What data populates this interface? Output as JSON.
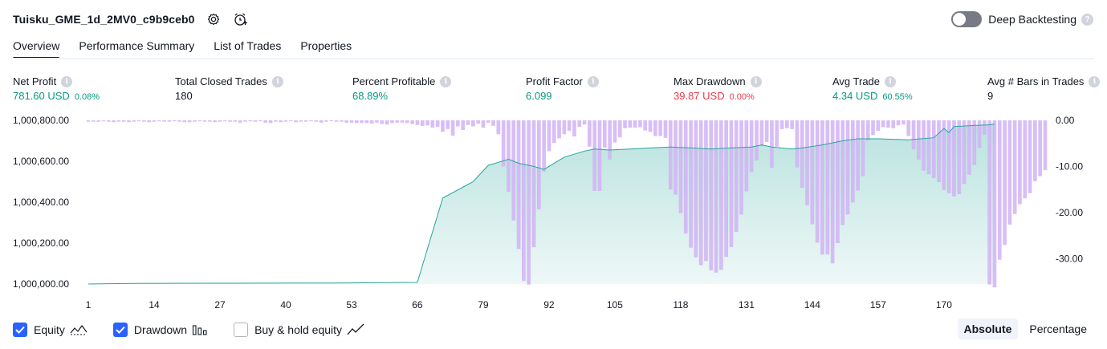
{
  "header": {
    "title": "Tuisku_GME_1d_2MV0_c9b9ceb0"
  },
  "deep_backtesting": {
    "label": "Deep Backtesting",
    "enabled": false,
    "help": "?"
  },
  "tabs": [
    {
      "label": "Overview",
      "active": true
    },
    {
      "label": "Performance Summary",
      "active": false
    },
    {
      "label": "List of Trades",
      "active": false
    },
    {
      "label": "Properties",
      "active": false
    }
  ],
  "metrics": {
    "info_glyph": "i",
    "net_profit": {
      "label": "Net Profit",
      "value": "781.60 USD",
      "pct": "0.08%"
    },
    "total_closed_trades": {
      "label": "Total Closed Trades",
      "value": "180"
    },
    "percent_profitable": {
      "label": "Percent Profitable",
      "value": "68.89%"
    },
    "profit_factor": {
      "label": "Profit Factor",
      "value": "6.099"
    },
    "max_drawdown": {
      "label": "Max Drawdown",
      "value": "39.87 USD",
      "pct": "0.00%"
    },
    "avg_trade": {
      "label": "Avg Trade",
      "value": "4.34 USD",
      "pct": "60.55%"
    },
    "avg_bars": {
      "label": "Avg # Bars in Trades",
      "value": "9"
    }
  },
  "colors": {
    "green": "#089981",
    "red": "#f23645",
    "equity_line": "#26a69a",
    "drawdown_bar": "#d1b3f4",
    "checkbox": "#2962ff"
  },
  "chart_data": {
    "type": "area",
    "x_label": "trade #",
    "x_ticks": [
      1,
      14,
      27,
      40,
      53,
      66,
      79,
      92,
      105,
      118,
      131,
      144,
      157,
      170
    ],
    "left_axis": {
      "ticks": [
        "1,000,000.00",
        "1,000,200.00",
        "1,000,400.00",
        "1,000,600.00",
        "1,000,800.00"
      ],
      "range": [
        1000000,
        1000800
      ]
    },
    "right_axis": {
      "ticks": [
        "0.00",
        "-10.00",
        "-20.00",
        "-30.00"
      ],
      "range": [
        -36,
        0
      ]
    },
    "series": [
      {
        "name": "Equity",
        "axis": "left",
        "points": [
          [
            1,
            1000000
          ],
          [
            10,
            1000003
          ],
          [
            30,
            1000004
          ],
          [
            50,
            1000005
          ],
          [
            60,
            1000007
          ],
          [
            66,
            1000008
          ],
          [
            71,
            1000420
          ],
          [
            77,
            1000500
          ],
          [
            80,
            1000580
          ],
          [
            82,
            1000595
          ],
          [
            84,
            1000610
          ],
          [
            86,
            1000590
          ],
          [
            89,
            1000575
          ],
          [
            91,
            1000560
          ],
          [
            95,
            1000620
          ],
          [
            99,
            1000650
          ],
          [
            101,
            1000660
          ],
          [
            104,
            1000655
          ],
          [
            108,
            1000660
          ],
          [
            112,
            1000665
          ],
          [
            116,
            1000670
          ],
          [
            120,
            1000665
          ],
          [
            124,
            1000660
          ],
          [
            128,
            1000665
          ],
          [
            132,
            1000670
          ],
          [
            134,
            1000680
          ],
          [
            136,
            1000670
          ],
          [
            140,
            1000660
          ],
          [
            142,
            1000665
          ],
          [
            146,
            1000680
          ],
          [
            150,
            1000700
          ],
          [
            153,
            1000710
          ],
          [
            157,
            1000710
          ],
          [
            163,
            1000705
          ],
          [
            168,
            1000715
          ],
          [
            170,
            1000760
          ],
          [
            171,
            1000740
          ],
          [
            172,
            1000770
          ],
          [
            176,
            1000775
          ],
          [
            179,
            1000778
          ],
          [
            180,
            1000782
          ]
        ]
      },
      {
        "name": "Drawdown",
        "axis": "right",
        "values": [
          -0.3,
          -0.3,
          -0.3,
          -0.2,
          -0.3,
          -0.4,
          -0.3,
          -0.3,
          -0.4,
          -0.3,
          -0.2,
          -0.3,
          -0.4,
          -0.3,
          -0.2,
          -0.3,
          -0.3,
          -0.2,
          -0.3,
          -0.4,
          -0.4,
          -0.3,
          -0.2,
          -0.3,
          -0.3,
          -0.4,
          -0.3,
          -0.2,
          -0.3,
          -0.3,
          -0.5,
          -0.3,
          -0.2,
          -0.3,
          -0.2,
          -0.5,
          -0.6,
          -0.3,
          -0.4,
          -0.3,
          -0.2,
          -0.4,
          -0.3,
          -0.3,
          -0.2,
          -0.3,
          -0.5,
          -0.3,
          -0.2,
          -0.3,
          -0.3,
          -0.5,
          -0.5,
          -0.6,
          -0.6,
          -0.6,
          -0.7,
          -0.5,
          -0.8,
          -0.9,
          -0.6,
          -0.5,
          -0.5,
          -0.6,
          -0.8,
          -1.0,
          -1.2,
          -1.1,
          -1.6,
          -1.4,
          -2.5,
          -1.9,
          -3.3,
          -1.3,
          -2.1,
          -1.0,
          -1.3,
          -0.7,
          -1.6,
          -0.5,
          -1.2,
          -3.0,
          -10.0,
          -15.5,
          -21.7,
          -27.9,
          -34.8,
          -35.6,
          -27.5,
          -19.3,
          -11.1,
          -6.7,
          -4.9,
          -3.9,
          -3.0,
          -2.3,
          -3.5,
          -1.4,
          -0.9,
          -5.7,
          -15.3,
          -15.3,
          -5.9,
          -8.5,
          -4.8,
          -3.7,
          -1.7,
          -1.6,
          -1.6,
          -1.5,
          -2.2,
          -2.5,
          -3.4,
          -3.4,
          -3.8,
          -15.0,
          -16.1,
          -20.1,
          -24.5,
          -27.6,
          -29.7,
          -31.4,
          -30.5,
          -32.5,
          -33.0,
          -32.4,
          -29.6,
          -27.5,
          -24.2,
          -20.4,
          -15.4,
          -11.2,
          -8.7,
          -5.6,
          -4.7,
          -10.3,
          -5.7,
          -1.9,
          -1.7,
          -1.9,
          -10.2,
          -14.6,
          -18.4,
          -22.5,
          -26.5,
          -29.1,
          -29.1,
          -31.0,
          -26.6,
          -22.7,
          -20.4,
          -17.8,
          -15.2,
          -12.1,
          -4.4,
          -3.2,
          -2.3,
          -1.5,
          -1.6,
          -1.7,
          -1.1,
          -0.9,
          -3.4,
          -6.3,
          -8.5,
          -10.9,
          -11.7,
          -12.5,
          -13.4,
          -15.1,
          -15.8,
          -16.5,
          -16.0,
          -13.8,
          -11.8,
          -9.7,
          -6.0,
          -3.1,
          -35.6,
          -36.2,
          -30.2,
          -27.0,
          -22.6,
          -20.3,
          -18.2,
          -16.9,
          -15.8,
          -13.2,
          -12.1,
          -10.8
        ]
      }
    ]
  },
  "legend": [
    {
      "label": "Equity",
      "checked": true,
      "glyph": "area-chart-icon"
    },
    {
      "label": "Drawdown",
      "checked": true,
      "glyph": "bar-chart-icon"
    },
    {
      "label": "Buy & hold equity",
      "checked": false,
      "glyph": "line-chart-icon"
    }
  ],
  "mode": {
    "absolute": "Absolute",
    "percentage": "Percentage",
    "active": "Absolute"
  }
}
